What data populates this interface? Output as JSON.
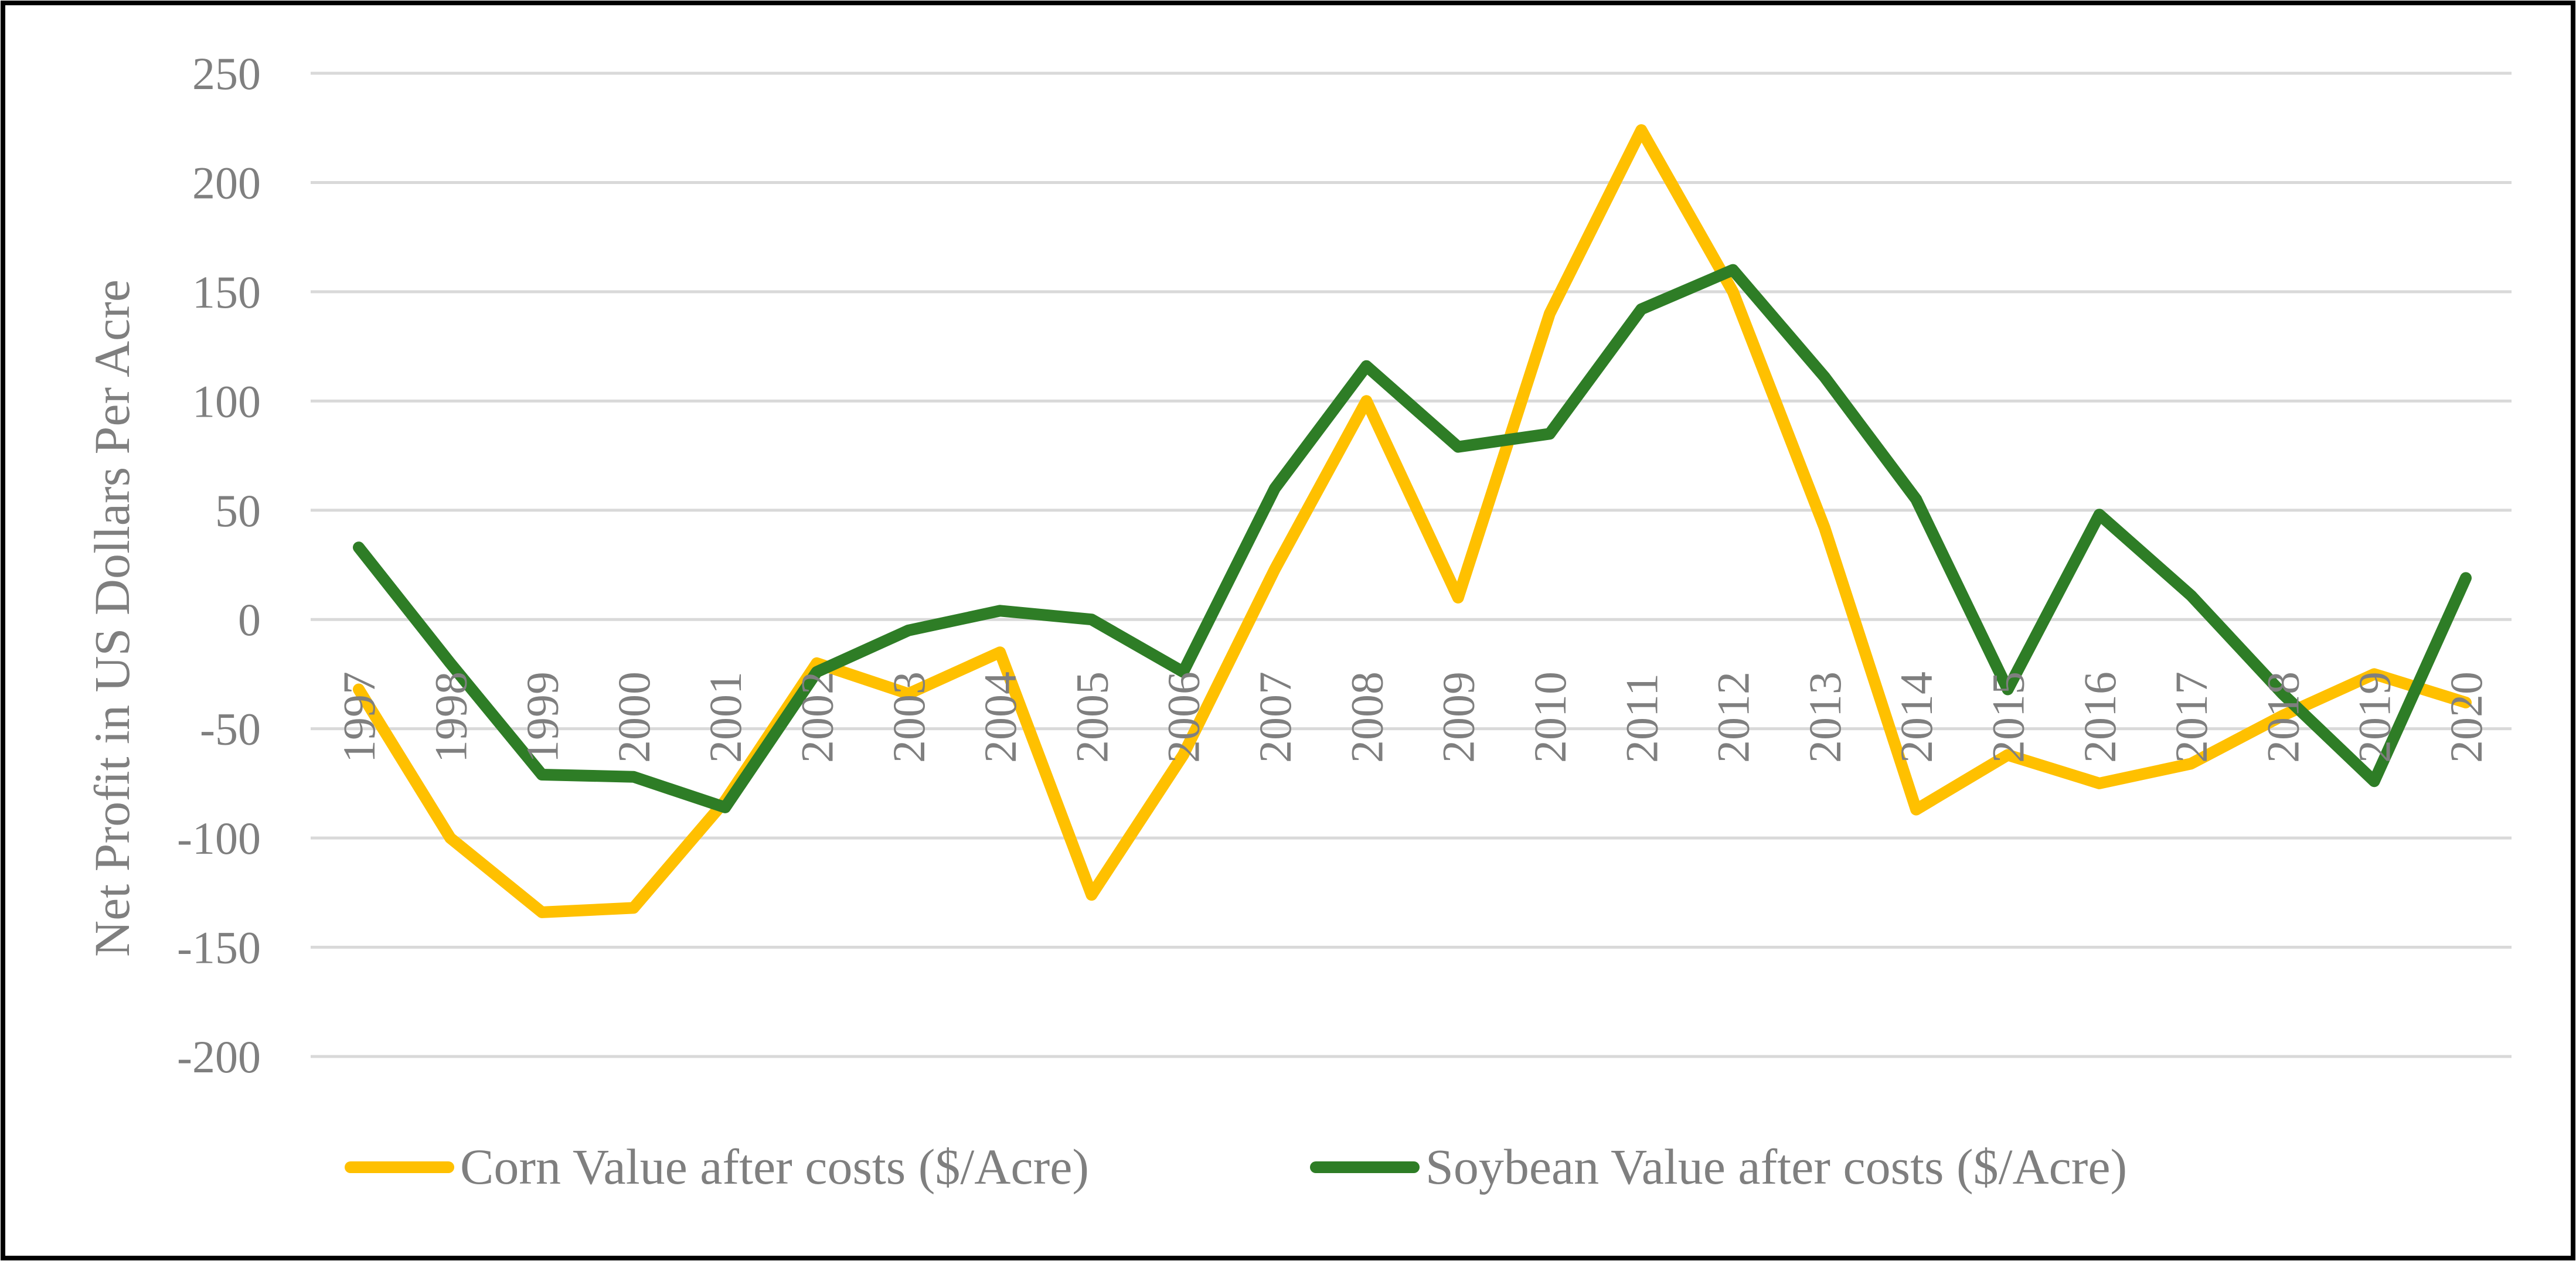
{
  "chart_data": {
    "type": "line",
    "title": "",
    "xlabel": "",
    "ylabel": "Net Profit in US Dollars Per Acre",
    "ylim": [
      -200,
      250
    ],
    "y_ticks": [
      250,
      200,
      150,
      100,
      50,
      0,
      -50,
      -100,
      -150,
      -200
    ],
    "grid": true,
    "legend_position": "bottom",
    "categories": [
      "1997",
      "1998",
      "1999",
      "2000",
      "2001",
      "2002",
      "2003",
      "2004",
      "2005",
      "2006",
      "2007",
      "2008",
      "2009",
      "2010",
      "2011",
      "2012",
      "2013",
      "2014",
      "2015",
      "2016",
      "2017",
      "2018",
      "2019",
      "2020"
    ],
    "series": [
      {
        "name": "Corn Value after costs ($/Acre)",
        "color": "#ffc000",
        "values": [
          -32,
          -100,
          -134,
          -132,
          -83,
          -20,
          -34,
          -15,
          -126,
          -62,
          23,
          100,
          10,
          140,
          224,
          150,
          42,
          -87,
          -62,
          -75,
          -66,
          -44,
          -25,
          -38
        ]
      },
      {
        "name": "Soybean Value after costs ($/Acre)",
        "color": "#2e7d26",
        "values": [
          33,
          -20,
          -71,
          -72,
          -86,
          -24,
          -5,
          4,
          0,
          -24,
          60,
          116,
          79,
          85,
          142,
          160,
          111,
          55,
          -32,
          48,
          11,
          -34,
          -74,
          19
        ]
      }
    ]
  }
}
